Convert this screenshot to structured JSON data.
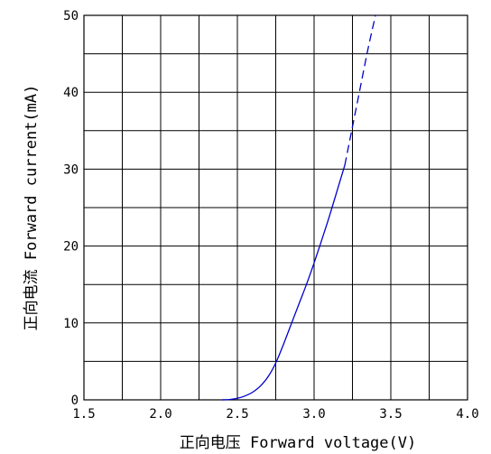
{
  "chart_data": {
    "type": "line",
    "xlabel": "正向电压  Forward voltage(V)",
    "ylabel": "正向电流  Forward current(mA)",
    "xlim": [
      1.5,
      4.0
    ],
    "ylim": [
      0,
      50
    ],
    "x_ticks": [
      "1.5",
      "2.0",
      "2.5",
      "3.0",
      "3.5",
      "4.0"
    ],
    "y_ticks": [
      "0",
      "10",
      "20",
      "30",
      "40",
      "50"
    ],
    "x_minor_step": 0.25,
    "y_minor_step": 5,
    "grid": true,
    "colors": {
      "curve": "#0000cc",
      "grid": "#000000"
    },
    "series": [
      {
        "style": "solid",
        "x": [
          2.4,
          2.45,
          2.5,
          2.55,
          2.6,
          2.65,
          2.7,
          2.75,
          2.8,
          2.85,
          2.9,
          2.95,
          3.0,
          3.05,
          3.1,
          3.15,
          3.2
        ],
        "y": [
          0,
          0.05,
          0.2,
          0.5,
          1.0,
          1.8,
          3.0,
          4.8,
          7.2,
          9.8,
          12.4,
          15.0,
          17.8,
          20.8,
          23.9,
          27.2,
          30.5
        ]
      },
      {
        "style": "dashed",
        "x": [
          3.2,
          3.25,
          3.3,
          3.35,
          3.4
        ],
        "y": [
          30.5,
          35.5,
          40.5,
          45.5,
          50
        ]
      }
    ]
  }
}
